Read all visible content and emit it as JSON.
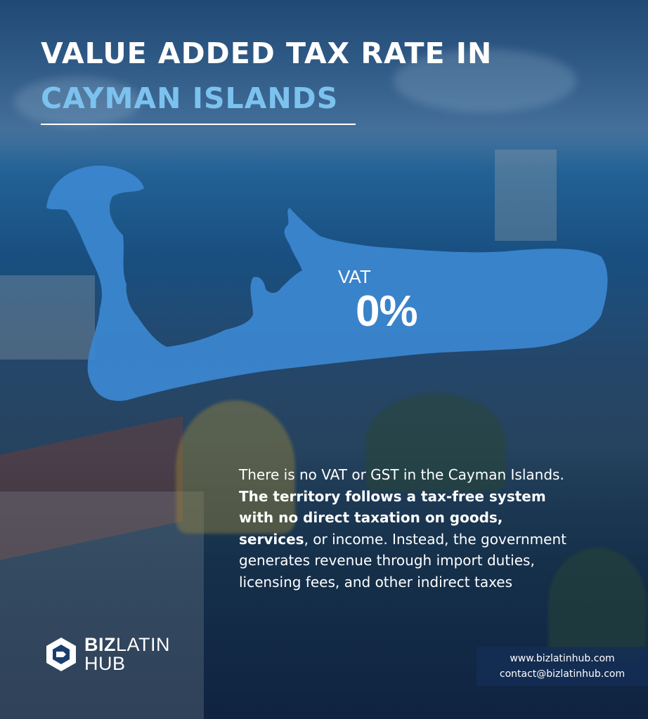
{
  "header": {
    "title_line1": "VALUE ADDED TAX RATE IN",
    "title_line2": "CAYMAN ISLANDS"
  },
  "map": {
    "vat_label": "VAT",
    "vat_value": "0%",
    "fill_color": "#3b86cf"
  },
  "description": {
    "part1": "There is no VAT or GST in the Cayman Islands. ",
    "bold1": "The territory follows a tax-free system with no direct taxation on goods, services",
    "part2": ", or income. Instead, the government generates revenue through import duties, licensing fees, and other indirect taxes"
  },
  "brand": {
    "name_bold": "BIZ",
    "name_regular": "LATIN",
    "name_line2": "HUB",
    "logo_icon": "bizlatin-hub-logo-icon"
  },
  "contact": {
    "website": "www.bizlatinhub.com",
    "email": "contact@bizlatinhub.com"
  },
  "colors": {
    "accent": "#7cc2ee",
    "background_overlay": "#143a66"
  }
}
